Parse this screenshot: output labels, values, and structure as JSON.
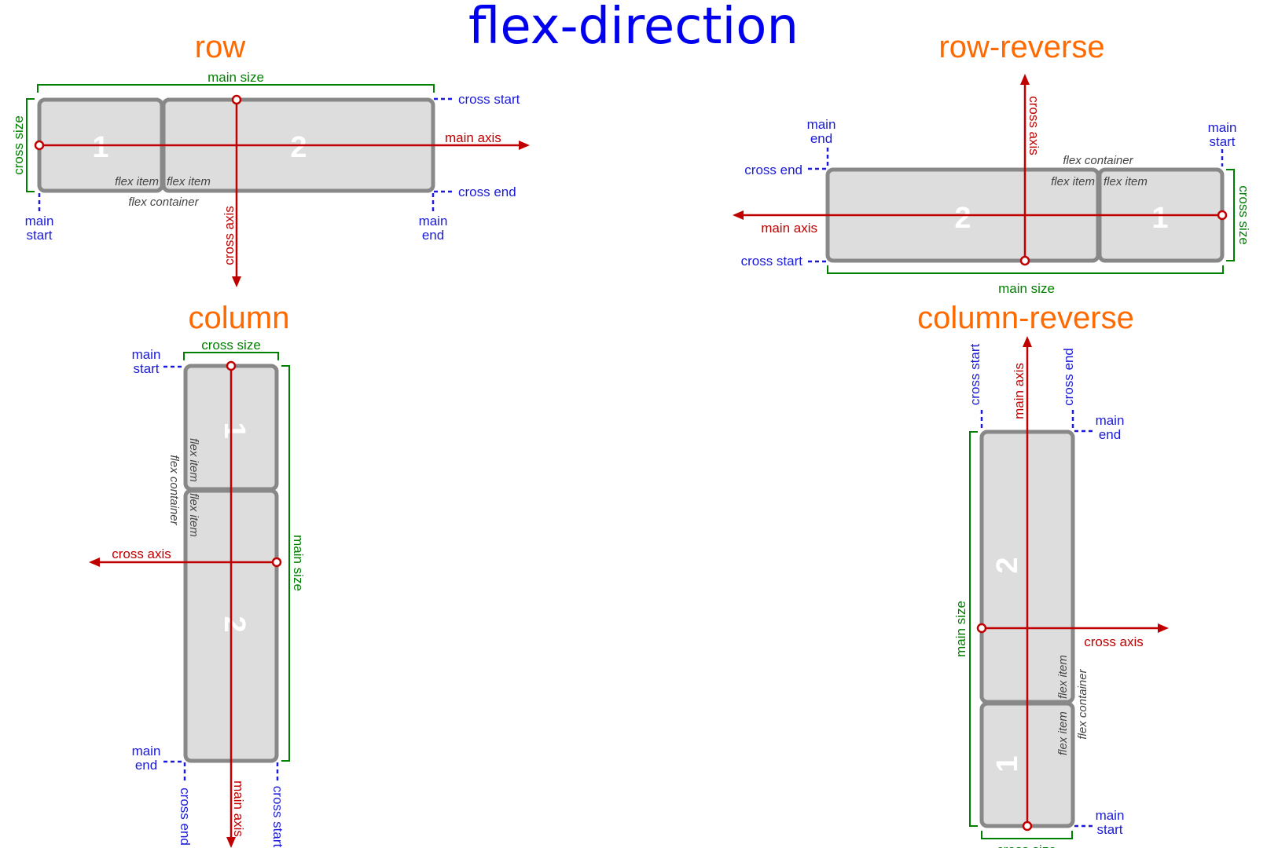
{
  "title": "flex-direction",
  "labels": {
    "main_size": "main size",
    "cross_size": "cross size",
    "main_axis": "main axis",
    "cross_axis": "cross axis",
    "cross_start": "cross start",
    "cross_end": "cross end",
    "main": "main",
    "start": "start",
    "end": "end",
    "flex_item": "flex item",
    "flex_container": "flex container",
    "item_1": "1",
    "item_2": "2"
  },
  "panels": {
    "row": "row",
    "row_reverse": "row-reverse",
    "column": "column",
    "column_reverse": "column-reverse"
  },
  "colors": {
    "title": "#0000ee",
    "heading": "#ff6a00",
    "axis": "#c00000",
    "start_end": "#1a1ad8",
    "size": "#008000",
    "box_fill": "#dddddd",
    "box_stroke": "#888888"
  }
}
